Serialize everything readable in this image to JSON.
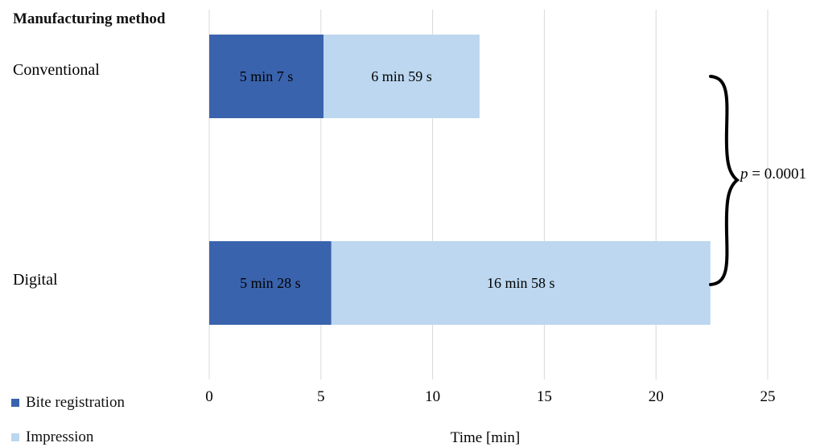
{
  "header": {
    "title": "Manufacturing method"
  },
  "chart_data": {
    "type": "bar",
    "orientation": "horizontal",
    "stacked": true,
    "categories": [
      "Conventional",
      "Digital"
    ],
    "series": [
      {
        "name": "Bite registration",
        "values": [
          5.1167,
          5.4667
        ],
        "labels": [
          "5 min 7 s",
          "5 min 28 s"
        ],
        "color": "#3a63ad"
      },
      {
        "name": "Impression",
        "values": [
          6.9833,
          16.9667
        ],
        "labels": [
          "6 min 59 s",
          "16 min 58 s"
        ],
        "color": "#bcd7ef"
      }
    ],
    "xlabel": "Time [min]",
    "xlim": [
      0,
      25
    ],
    "xticks": [
      0,
      5,
      10,
      15,
      20,
      25
    ],
    "grid": "vertical",
    "legend": "bottom-left",
    "annotation": {
      "prefix": "p",
      "text": " = 0.0001"
    }
  }
}
